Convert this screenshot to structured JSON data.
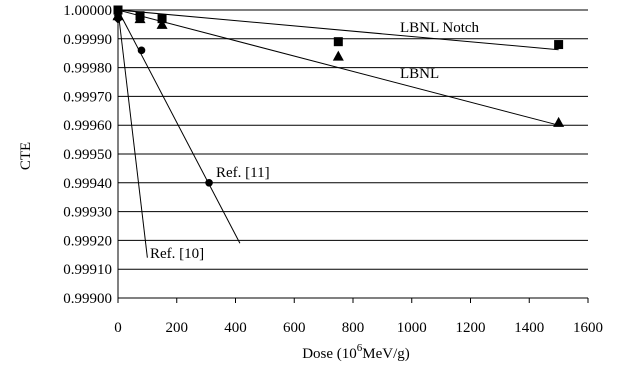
{
  "chart_data": {
    "type": "scatter",
    "title": "",
    "xlabel": "Dose (10",
    "xlabel_superscript": "6",
    "xlabel_suffix": "MeV/g)",
    "ylabel": "CTE",
    "xlim": [
      0,
      1600
    ],
    "ylim": [
      0.999,
      1.0
    ],
    "x_ticks": [
      "0",
      "200",
      "400",
      "600",
      "800",
      "1000",
      "1200",
      "1400",
      "1600"
    ],
    "y_ticks": [
      "0.99900",
      "0.99910",
      "0.99920",
      "0.99930",
      "0.99940",
      "0.99950",
      "0.99960",
      "0.99970",
      "0.99980",
      "0.99990",
      "1.00000"
    ],
    "grid": "horizontal",
    "series": [
      {
        "name": "LBNL Notch",
        "marker": "square",
        "points": [
          [
            0,
            1.0
          ],
          [
            75,
            0.99998
          ],
          [
            150,
            0.99997
          ],
          [
            750,
            0.99989
          ],
          [
            1500,
            0.99988
          ]
        ],
        "fit": [
          [
            0,
            1.0
          ],
          [
            1500,
            0.999862
          ]
        ]
      },
      {
        "name": "LBNL",
        "marker": "triangle",
        "points": [
          [
            0,
            0.99998
          ],
          [
            75,
            0.99997
          ],
          [
            150,
            0.99995
          ],
          [
            750,
            0.99984
          ],
          [
            1500,
            0.99961
          ]
        ],
        "fit": [
          [
            0,
            1.0
          ],
          [
            1500,
            0.9996
          ]
        ]
      },
      {
        "name": "Ref. [11]",
        "marker": "circle",
        "points": [
          [
            0,
            0.99998
          ],
          [
            80,
            0.99986
          ],
          [
            310,
            0.9994
          ]
        ],
        "fit": [
          [
            0,
            1.0
          ],
          [
            415,
            0.99919
          ]
        ]
      },
      {
        "name": "Ref. [10]",
        "marker": "diamond",
        "points": [
          [
            0,
            0.99997
          ]
        ],
        "fit": [
          [
            0,
            1.0
          ],
          [
            100,
            0.99914
          ]
        ]
      }
    ],
    "annotations": [
      "LBNL Notch",
      "LBNL",
      "Ref. [11]",
      "Ref. [10]"
    ]
  }
}
